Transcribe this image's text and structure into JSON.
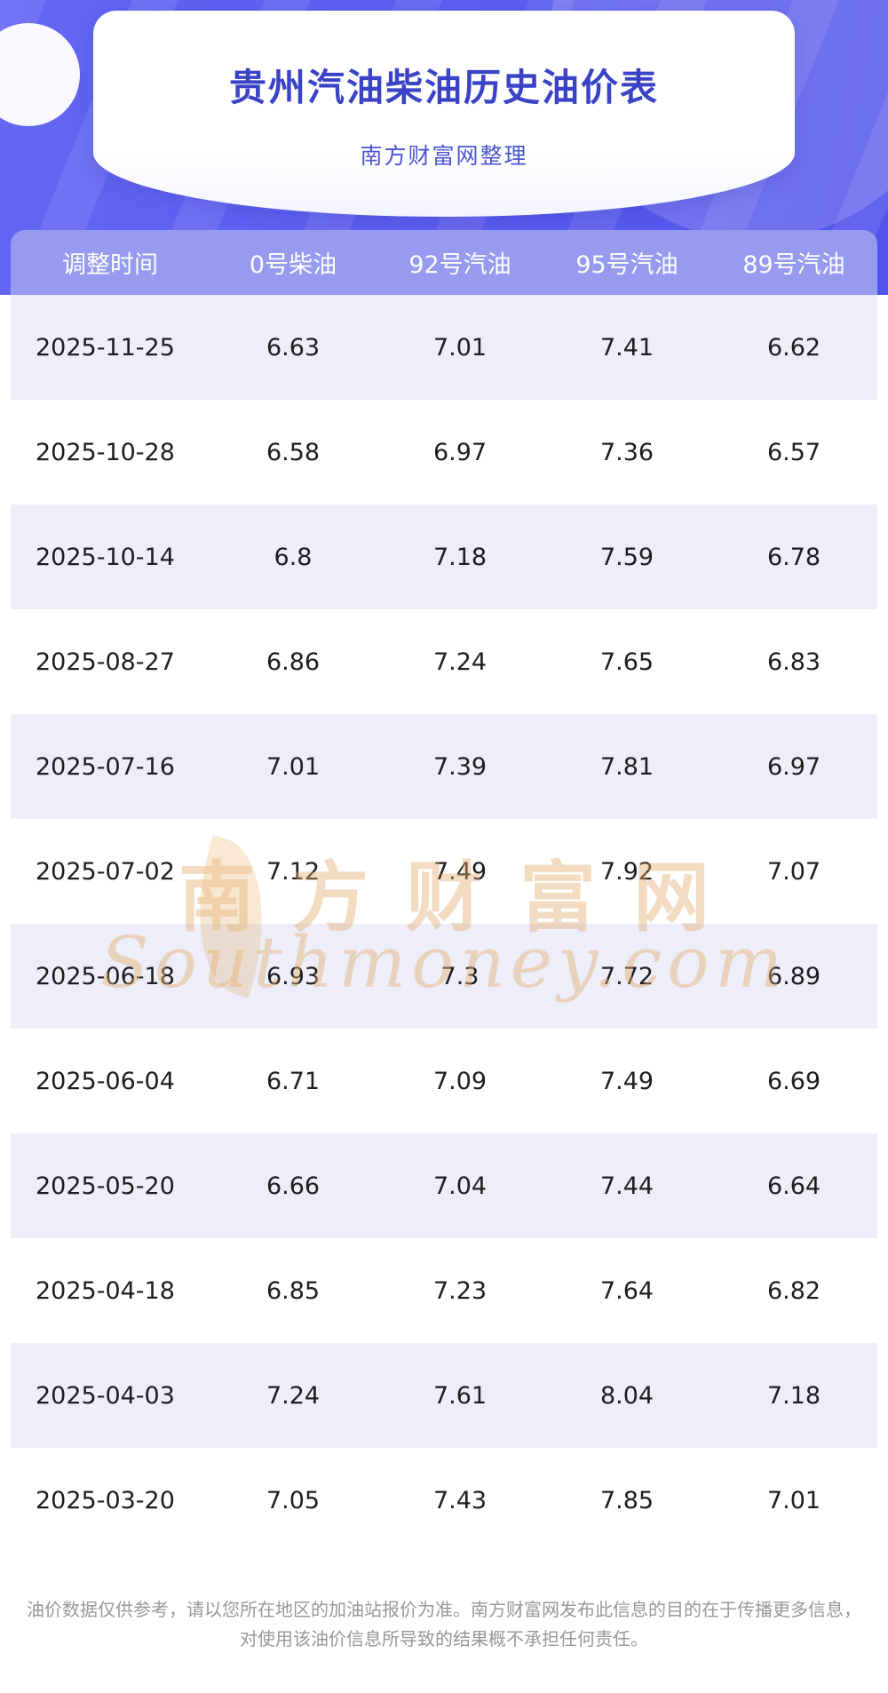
{
  "page": {
    "title": "贵州汽油柴油历史油价表",
    "subtitle": "南方财富网整理"
  },
  "table": {
    "headers": [
      "调整时间",
      "0号柴油",
      "92号汽油",
      "95号汽油",
      "89号汽油"
    ],
    "rows": [
      {
        "date": "2025-11-25",
        "values": [
          "6.63",
          "7.01",
          "7.41",
          "6.62"
        ]
      },
      {
        "date": "2025-10-28",
        "values": [
          "6.58",
          "6.97",
          "7.36",
          "6.57"
        ]
      },
      {
        "date": "2025-10-14",
        "values": [
          "6.8",
          "7.18",
          "7.59",
          "6.78"
        ]
      },
      {
        "date": "2025-08-27",
        "values": [
          "6.86",
          "7.24",
          "7.65",
          "6.83"
        ]
      },
      {
        "date": "2025-07-16",
        "values": [
          "7.01",
          "7.39",
          "7.81",
          "6.97"
        ]
      },
      {
        "date": "2025-07-02",
        "values": [
          "7.12",
          "7.49",
          "7.92",
          "7.07"
        ]
      },
      {
        "date": "2025-06-18",
        "values": [
          "6.93",
          "7.3",
          "7.72",
          "6.89"
        ]
      },
      {
        "date": "2025-06-04",
        "values": [
          "6.71",
          "7.09",
          "7.49",
          "6.69"
        ]
      },
      {
        "date": "2025-05-20",
        "values": [
          "6.66",
          "7.04",
          "7.44",
          "6.64"
        ]
      },
      {
        "date": "2025-04-18",
        "values": [
          "6.85",
          "7.23",
          "7.64",
          "6.82"
        ]
      },
      {
        "date": "2025-04-03",
        "values": [
          "7.24",
          "7.61",
          "8.04",
          "7.18"
        ]
      },
      {
        "date": "2025-03-20",
        "values": [
          "7.05",
          "7.43",
          "7.85",
          "7.01"
        ]
      }
    ]
  },
  "watermark": {
    "line1": "南方财富网",
    "line2": "Southmoney.com"
  },
  "footer": {
    "disclaimer": "油价数据仅供参考，请以您所在地区的加油站报价为准。南方财富网发布此信息的目的在于传播更多信息，对使用该油价信息所导致的结果概不承担任何责任。"
  },
  "colors": {
    "banner_purple": "#5a5df0",
    "table_header_purple": "#969bef",
    "alt_row": "#edeefa",
    "title_blue": "#3a43c5",
    "watermark_tan": "#e2ac6e",
    "footer_gray": "#97979c"
  }
}
